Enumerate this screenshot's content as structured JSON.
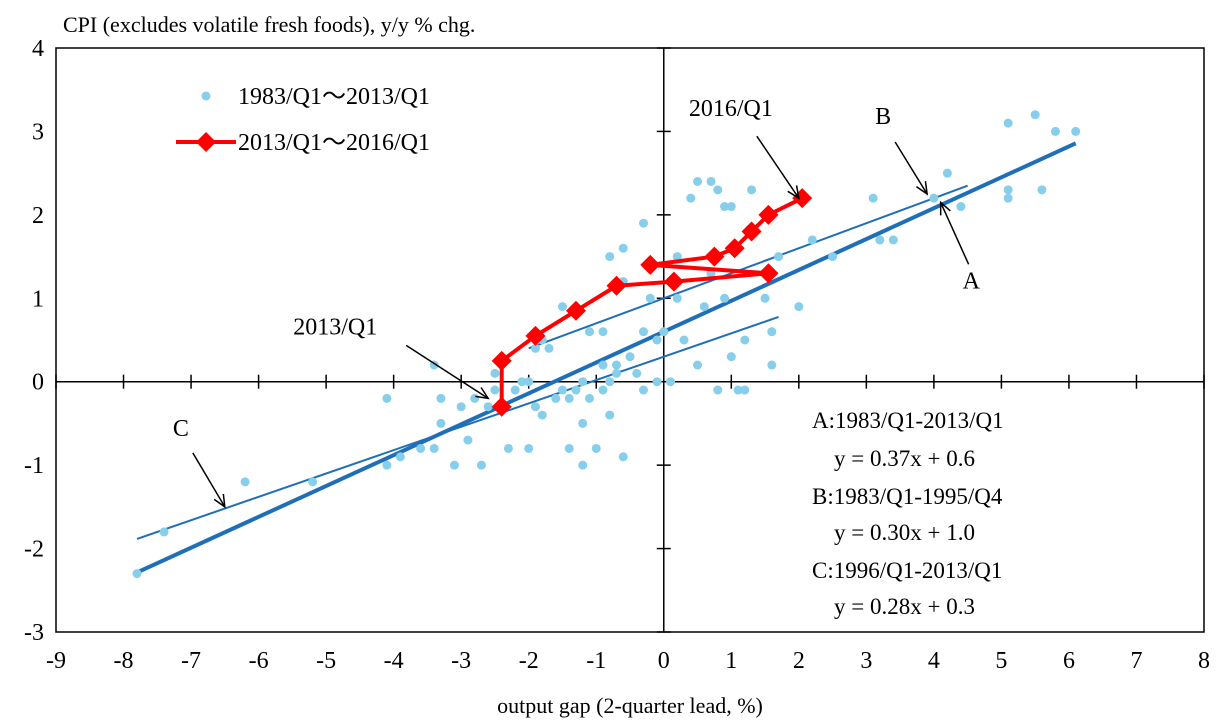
{
  "chart_data": {
    "type": "scatter",
    "title": "CPI (excludes volatile fresh foods), y/y % chg.",
    "xlabel": "output gap (2-quarter lead, %)",
    "ylabel": "",
    "xlim": [
      -9,
      8
    ],
    "ylim": [
      -3,
      4
    ],
    "x_ticks": [
      "-9",
      "-8",
      "-7",
      "-6",
      "-5",
      "-4",
      "-3",
      "-2",
      "-1",
      "0",
      "1",
      "2",
      "3",
      "4",
      "5",
      "6",
      "7",
      "8"
    ],
    "y_ticks": [
      "-3",
      "-2",
      "-1",
      "0",
      "1",
      "2",
      "3",
      "4"
    ],
    "grid": false,
    "legend_position": "top-left",
    "series": [
      {
        "name": "1983/Q1～2013/Q1",
        "kind": "scatter",
        "color": "#87ceeb",
        "points": [
          [
            -7.8,
            -2.3
          ],
          [
            -7.4,
            -1.8
          ],
          [
            -6.2,
            -1.2
          ],
          [
            -5.2,
            -1.2
          ],
          [
            -4.1,
            -1.0
          ],
          [
            -4.1,
            -0.2
          ],
          [
            -3.9,
            -0.9
          ],
          [
            -3.6,
            -0.8
          ],
          [
            -3.4,
            -0.8
          ],
          [
            -3.4,
            0.2
          ],
          [
            -3.3,
            -0.5
          ],
          [
            -3.3,
            -0.2
          ],
          [
            -3.1,
            -1.0
          ],
          [
            -3.0,
            -0.3
          ],
          [
            -2.9,
            -0.7
          ],
          [
            -2.8,
            -0.2
          ],
          [
            -2.7,
            -1.0
          ],
          [
            -2.6,
            -0.3
          ],
          [
            -2.5,
            -0.1
          ],
          [
            -2.5,
            0.1
          ],
          [
            -2.3,
            -0.8
          ],
          [
            -2.2,
            -0.1
          ],
          [
            -2.1,
            0.0
          ],
          [
            -2.0,
            -0.8
          ],
          [
            -2.0,
            0.0
          ],
          [
            -1.9,
            0.4
          ],
          [
            -1.9,
            -0.3
          ],
          [
            -1.8,
            -0.4
          ],
          [
            -1.8,
            0.5
          ],
          [
            -1.7,
            0.4
          ],
          [
            -1.6,
            -0.2
          ],
          [
            -1.5,
            -0.1
          ],
          [
            -1.5,
            0.9
          ],
          [
            -1.4,
            -0.2
          ],
          [
            -1.4,
            -0.8
          ],
          [
            -1.3,
            -0.1
          ],
          [
            -1.2,
            0.0
          ],
          [
            -1.2,
            -0.5
          ],
          [
            -1.2,
            -1.0
          ],
          [
            -1.1,
            -0.2
          ],
          [
            -1.1,
            0.6
          ],
          [
            -1.0,
            -0.8
          ],
          [
            -0.9,
            0.2
          ],
          [
            -0.9,
            0.6
          ],
          [
            -0.9,
            -0.1
          ],
          [
            -0.8,
            0.0
          ],
          [
            -0.8,
            -0.4
          ],
          [
            -0.8,
            1.5
          ],
          [
            -0.7,
            0.1
          ],
          [
            -0.7,
            0.2
          ],
          [
            -0.6,
            1.2
          ],
          [
            -0.6,
            -0.9
          ],
          [
            -0.6,
            1.6
          ],
          [
            -0.5,
            0.3
          ],
          [
            -0.4,
            0.1
          ],
          [
            -0.3,
            -0.1
          ],
          [
            -0.3,
            0.6
          ],
          [
            -0.3,
            1.9
          ],
          [
            -0.2,
            1.0
          ],
          [
            -0.1,
            0.5
          ],
          [
            -0.1,
            0.0
          ],
          [
            0.0,
            0.6
          ],
          [
            0.1,
            0.0
          ],
          [
            0.2,
            1.0
          ],
          [
            0.2,
            1.5
          ],
          [
            0.3,
            0.5
          ],
          [
            0.4,
            2.2
          ],
          [
            0.5,
            0.2
          ],
          [
            0.5,
            2.4
          ],
          [
            0.6,
            0.9
          ],
          [
            0.7,
            2.4
          ],
          [
            0.7,
            1.3
          ],
          [
            0.8,
            2.3
          ],
          [
            0.8,
            -0.1
          ],
          [
            0.9,
            1.0
          ],
          [
            0.9,
            2.1
          ],
          [
            1.0,
            2.1
          ],
          [
            1.0,
            0.3
          ],
          [
            1.1,
            -0.1
          ],
          [
            1.2,
            0.5
          ],
          [
            1.2,
            -0.1
          ],
          [
            1.3,
            2.3
          ],
          [
            1.5,
            1.0
          ],
          [
            1.6,
            0.6
          ],
          [
            1.6,
            0.2
          ],
          [
            1.7,
            1.5
          ],
          [
            2.0,
            0.9
          ],
          [
            2.2,
            1.7
          ],
          [
            2.5,
            1.5
          ],
          [
            3.1,
            2.2
          ],
          [
            3.2,
            1.7
          ],
          [
            3.4,
            1.7
          ],
          [
            4.0,
            2.2
          ],
          [
            4.2,
            2.5
          ],
          [
            4.4,
            2.1
          ],
          [
            5.1,
            2.3
          ],
          [
            5.1,
            2.2
          ],
          [
            5.1,
            3.1
          ],
          [
            5.5,
            3.2
          ],
          [
            5.6,
            2.3
          ],
          [
            5.8,
            3.0
          ],
          [
            6.1,
            3.0
          ]
        ]
      },
      {
        "name": "2013/Q1～2016/Q1",
        "kind": "line-marker",
        "color": "#ff0000",
        "points": [
          [
            -2.4,
            -0.3
          ],
          [
            -2.4,
            0.25
          ],
          [
            -1.9,
            0.55
          ],
          [
            -1.3,
            0.85
          ],
          [
            -0.7,
            1.15
          ],
          [
            0.15,
            1.2
          ],
          [
            1.55,
            1.3
          ],
          [
            -0.2,
            1.4
          ],
          [
            0.75,
            1.5
          ],
          [
            1.05,
            1.6
          ],
          [
            1.3,
            1.8
          ],
          [
            1.55,
            2.0
          ],
          [
            2.05,
            2.2
          ]
        ]
      }
    ],
    "regression_lines": [
      {
        "id": "A",
        "label": "A:1983/Q1-2013/Q1",
        "equation": "y = 0.37x + 0.6",
        "x_range": [
          -7.8,
          6.1
        ],
        "slope": 0.37,
        "intercept": 0.6,
        "color": "#1f6fb8"
      },
      {
        "id": "B",
        "label": "B:1983/Q1-1995/Q4",
        "equation": "y = 0.30x + 1.0",
        "x_range": [
          -2.0,
          4.5
        ],
        "slope": 0.3,
        "intercept": 1.0,
        "color": "#1f6fb8"
      },
      {
        "id": "C",
        "label": "C:1996/Q1-2013/Q1",
        "equation": "y = 0.28x + 0.3",
        "x_range": [
          -7.8,
          1.7
        ],
        "slope": 0.28,
        "intercept": 0.3,
        "color": "#1f6fb8"
      }
    ],
    "annotations": [
      {
        "text": "2016/Q1",
        "at": [
          2.0,
          2.2
        ]
      },
      {
        "text": "2013/Q1",
        "at": [
          -2.6,
          -0.2
        ]
      },
      {
        "text": "A",
        "at": [
          4.1,
          2.15
        ]
      },
      {
        "text": "B",
        "at": [
          3.9,
          2.25
        ]
      },
      {
        "text": "C",
        "at": [
          -6.5,
          -1.5
        ]
      }
    ]
  }
}
